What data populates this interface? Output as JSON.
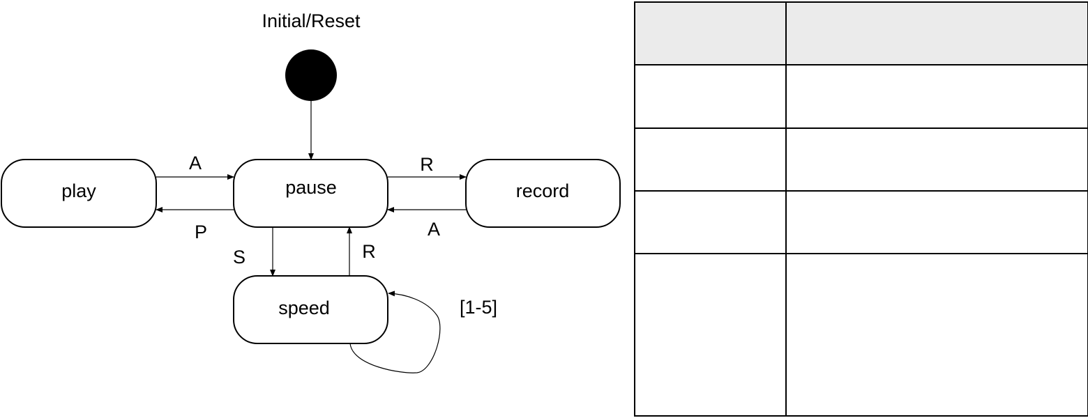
{
  "diagram": {
    "initial_label": "Initial/Reset",
    "states": {
      "play": "play",
      "pause": "pause",
      "record": "record",
      "speed": "speed"
    },
    "transitions": {
      "play_to_pause": "A",
      "pause_to_play": "P",
      "pause_to_record": "R",
      "record_to_pause": "A",
      "pause_to_speed": "S",
      "speed_to_pause": "R",
      "speed_self": "[1-5]"
    }
  },
  "table": {
    "header": [
      "",
      ""
    ],
    "rows": [
      [
        "",
        ""
      ],
      [
        "",
        ""
      ],
      [
        "",
        ""
      ],
      [
        "",
        ""
      ]
    ]
  }
}
